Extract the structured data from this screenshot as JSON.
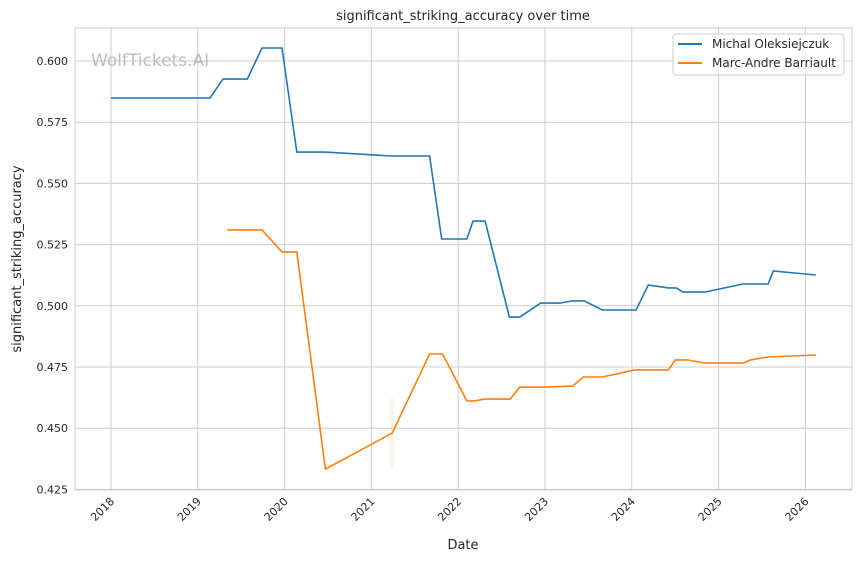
{
  "chart_data": {
    "type": "line",
    "title": "significant_striking_accuracy over time",
    "xlabel": "Date",
    "ylabel": "significant_striking_accuracy",
    "watermark": "WolfTickets.AI",
    "xlim": [
      2017.6,
      2026.5
    ],
    "ylim": [
      0.425,
      0.613
    ],
    "xticks": [
      2018,
      2019,
      2020,
      2021,
      2022,
      2023,
      2024,
      2025,
      2026
    ],
    "xtick_labels": [
      "2018",
      "2019",
      "2020",
      "2021",
      "2022",
      "2023",
      "2024",
      "2025",
      "2026"
    ],
    "yticks": [
      0.425,
      0.45,
      0.475,
      0.5,
      0.525,
      0.55,
      0.575,
      0.6
    ],
    "ytick_labels": [
      "0.425",
      "0.450",
      "0.475",
      "0.500",
      "0.525",
      "0.550",
      "0.575",
      "0.600"
    ],
    "grid": true,
    "legend_position": "top-right",
    "series": [
      {
        "name": "Michal Oleksiejczuk",
        "color": "#1f77b4",
        "x": [
          2018.0,
          2019.14,
          2019.29,
          2019.57,
          2019.74,
          2019.97,
          2020.14,
          2020.47,
          2021.23,
          2021.67,
          2021.81,
          2022.1,
          2022.17,
          2022.31,
          2022.59,
          2022.71,
          2022.95,
          2023.17,
          2023.31,
          2023.45,
          2023.66,
          2024.05,
          2024.19,
          2024.42,
          2024.51,
          2024.59,
          2024.84,
          2025.28,
          2025.57,
          2025.63,
          2026.12
        ],
        "y": [
          0.5849,
          0.5849,
          0.5926,
          0.5926,
          0.6053,
          0.6053,
          0.5628,
          0.5628,
          0.5612,
          0.5612,
          0.5273,
          0.5273,
          0.5346,
          0.5346,
          0.4954,
          0.4954,
          0.5011,
          0.5011,
          0.502,
          0.502,
          0.4983,
          0.4983,
          0.5085,
          0.5073,
          0.5073,
          0.5056,
          0.5056,
          0.5089,
          0.5089,
          0.5142,
          0.5126
        ]
      },
      {
        "name": "Marc-Andre Barriault",
        "color": "#ff7f0e",
        "x": [
          2019.34,
          2019.74,
          2019.97,
          2020.14,
          2020.47,
          2021.24,
          2021.67,
          2021.82,
          2022.1,
          2022.17,
          2022.31,
          2022.6,
          2022.71,
          2023.01,
          2023.32,
          2023.44,
          2023.66,
          2024.04,
          2024.42,
          2024.5,
          2024.64,
          2024.84,
          2025.28,
          2025.37,
          2025.57,
          2026.12
        ],
        "y": [
          0.531,
          0.531,
          0.522,
          0.522,
          0.4333,
          0.448,
          0.4803,
          0.4803,
          0.4611,
          0.4611,
          0.4619,
          0.4619,
          0.4668,
          0.4668,
          0.4672,
          0.4709,
          0.4709,
          0.4738,
          0.4738,
          0.4779,
          0.4779,
          0.4766,
          0.4766,
          0.4779,
          0.4791,
          0.4799
        ]
      }
    ]
  }
}
